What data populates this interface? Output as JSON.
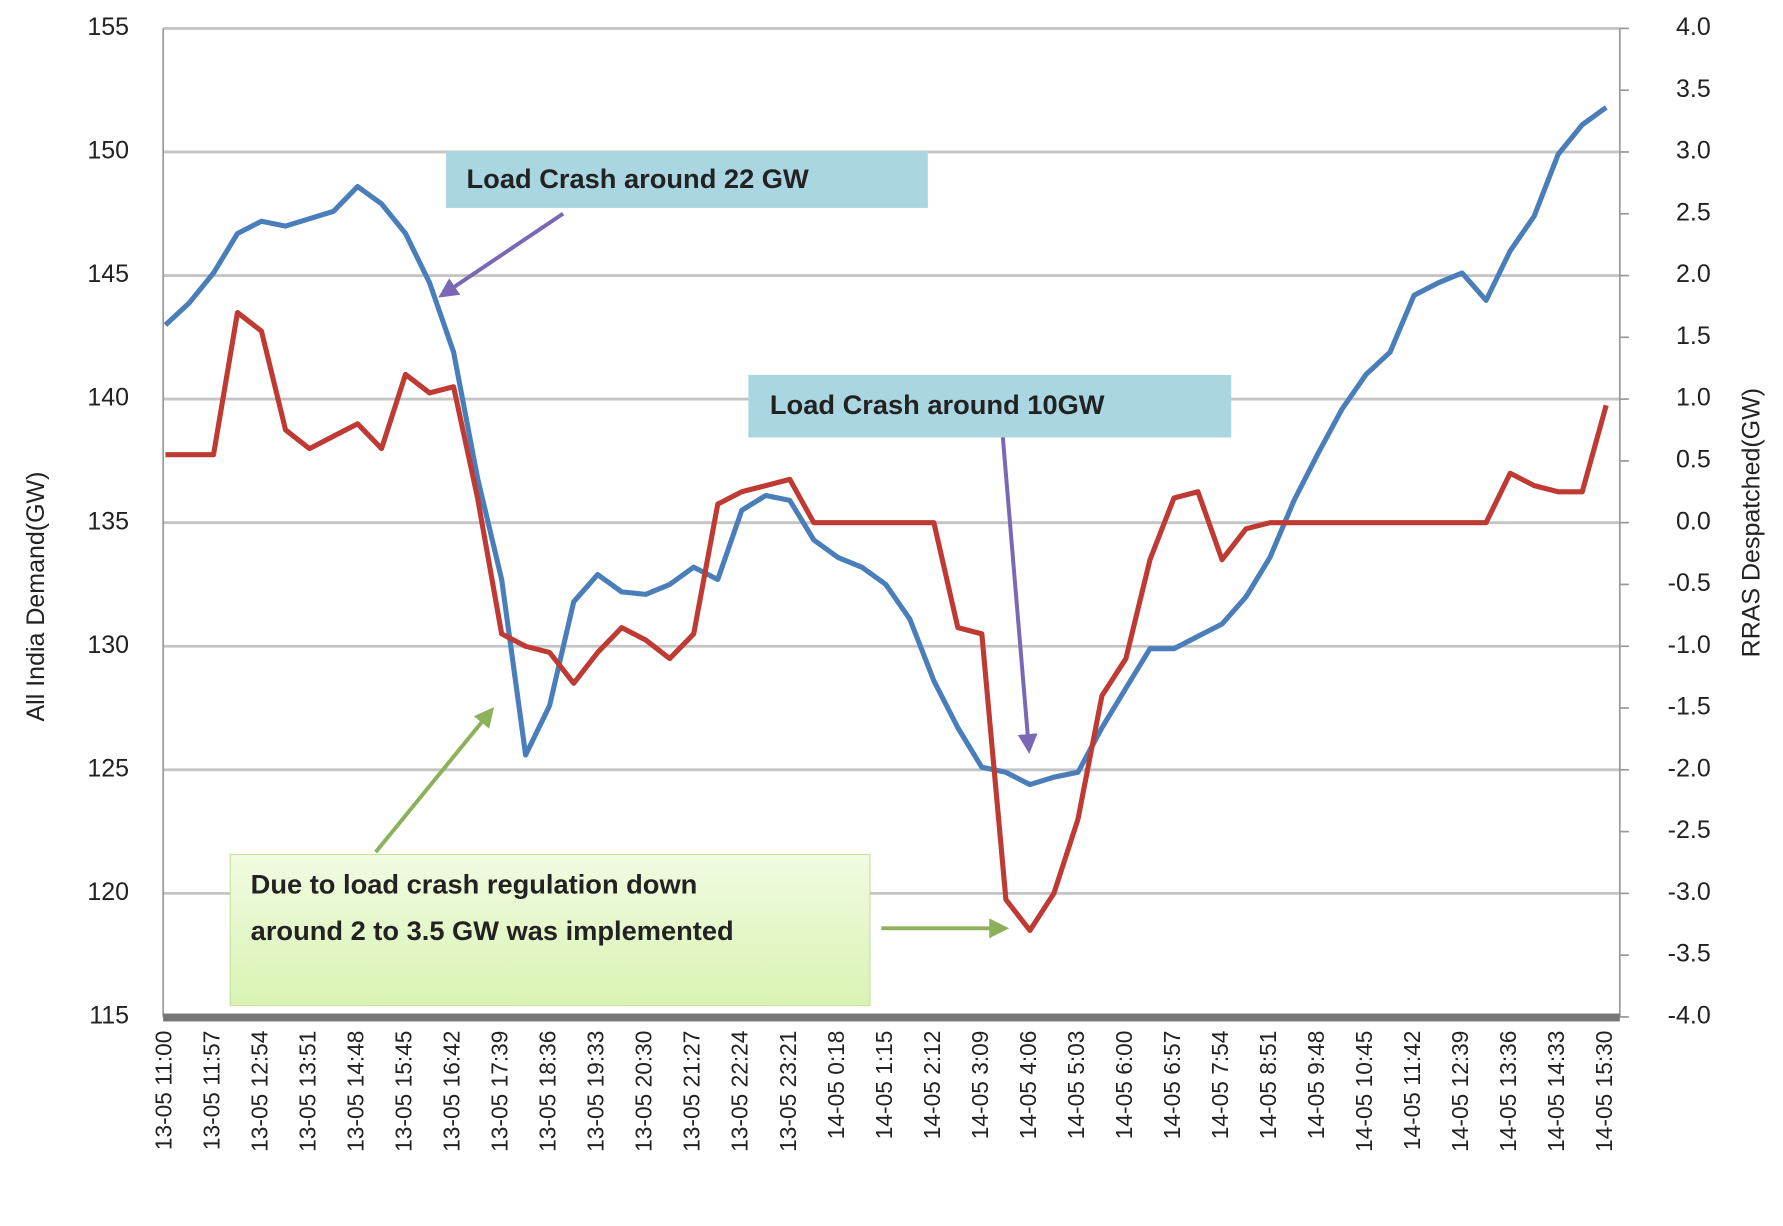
{
  "chart_data": {
    "type": "line",
    "ylabel": "All India Demand(GW)",
    "y2label": "RRAS Despatched(GW)",
    "categories": [
      "13-05 11:00",
      null,
      "13-05 11:57",
      null,
      "13-05 12:54",
      null,
      "13-05 13:51",
      null,
      "13-05 14:48",
      null,
      "13-05 15:45",
      null,
      "13-05 16:42",
      null,
      "13-05 17:39",
      null,
      "13-05 18:36",
      null,
      "13-05 19:33",
      null,
      "13-05 20:30",
      null,
      "13-05 21:27",
      null,
      "13-05 22:24",
      null,
      "13-05 23:21",
      null,
      "14-05 0:18",
      null,
      "14-05 1:15",
      null,
      "14-05 2:12",
      null,
      "14-05 3:09",
      null,
      "14-05 4:06",
      null,
      "14-05 5:03",
      null,
      "14-05 6:00",
      null,
      "14-05 6:57",
      null,
      "14-05 7:54",
      null,
      "14-05 8:51",
      null,
      "14-05 9:48",
      null,
      "14-05 10:45",
      null,
      "14-05 11:42",
      null,
      "14-05 12:39",
      null,
      "14-05 13:36",
      null,
      "14-05 14:33",
      null,
      "14-05 15:30"
    ],
    "series": [
      {
        "color": "#4a7ebb",
        "axis": "y",
        "values": [
          143.0,
          143.9,
          145.1,
          146.7,
          147.2,
          147.0,
          147.3,
          147.6,
          148.6,
          147.9,
          146.7,
          144.7,
          141.9,
          136.8,
          132.7,
          125.6,
          127.6,
          131.8,
          132.9,
          132.2,
          132.1,
          132.5,
          133.2,
          132.7,
          135.5,
          136.1,
          135.9,
          134.3,
          133.6,
          133.2,
          132.5,
          131.1,
          128.6,
          126.7,
          125.1,
          124.9,
          124.4,
          124.7,
          124.9,
          126.7,
          128.3,
          129.9,
          129.9,
          130.4,
          130.9,
          132.0,
          133.6,
          135.9,
          137.8,
          139.6,
          141.0,
          141.9,
          144.2,
          144.7,
          145.1,
          144.0,
          146.0,
          147.4,
          149.9,
          151.1,
          151.8
        ]
      },
      {
        "color": "#be3a33",
        "axis": "y2",
        "values": [
          0.55,
          0.55,
          0.55,
          1.7,
          1.55,
          0.75,
          0.6,
          0.7,
          0.8,
          0.6,
          1.2,
          1.05,
          1.1,
          0.2,
          -0.9,
          -1.0,
          -1.05,
          -1.3,
          -1.05,
          -0.85,
          -0.95,
          -1.1,
          -0.9,
          0.15,
          0.25,
          0.3,
          0.35,
          0.0,
          0.0,
          0.0,
          0.0,
          0.0,
          0.0,
          -0.85,
          -0.9,
          -3.05,
          -3.3,
          -3.0,
          -2.4,
          -1.4,
          -1.1,
          -0.3,
          0.2,
          0.25,
          -0.3,
          -0.05,
          0.0,
          0.0,
          0.0,
          0.0,
          0.0,
          0.0,
          0.0,
          0.0,
          0.0,
          0.0,
          0.4,
          0.3,
          0.25,
          0.25,
          0.95
        ]
      }
    ],
    "ylim": [
      115,
      155
    ],
    "yticks": [
      115,
      120,
      125,
      130,
      135,
      140,
      145,
      150,
      155
    ],
    "y2lim": [
      -4,
      4
    ],
    "y2ticks": [
      {
        "value": -4,
        "label": "-4.0"
      },
      -3.5,
      {
        "value": -3,
        "label": "-3.0"
      },
      -2.5,
      {
        "value": -2,
        "label": "-2.0"
      },
      -1.5,
      {
        "value": -1,
        "label": "-1.0"
      },
      -0.5,
      {
        "value": 0,
        "label": "0.0"
      },
      0.5,
      {
        "value": 1,
        "label": "1.0"
      },
      1.5,
      {
        "value": 2,
        "label": "2.0"
      },
      2.5,
      {
        "value": 3,
        "label": "3.0"
      },
      3.5,
      {
        "value": 4,
        "label": "4.0"
      }
    ],
    "grid": true,
    "annotations": [
      {
        "lines": [
          "Load Crash  around 22 GW"
        ]
      },
      {
        "lines": [
          "Load Crash  around 10GW"
        ]
      },
      {
        "lines": [
          "Due to load crash regulation down",
          "around 2 to 3.5 GW was implemented"
        ]
      }
    ]
  }
}
